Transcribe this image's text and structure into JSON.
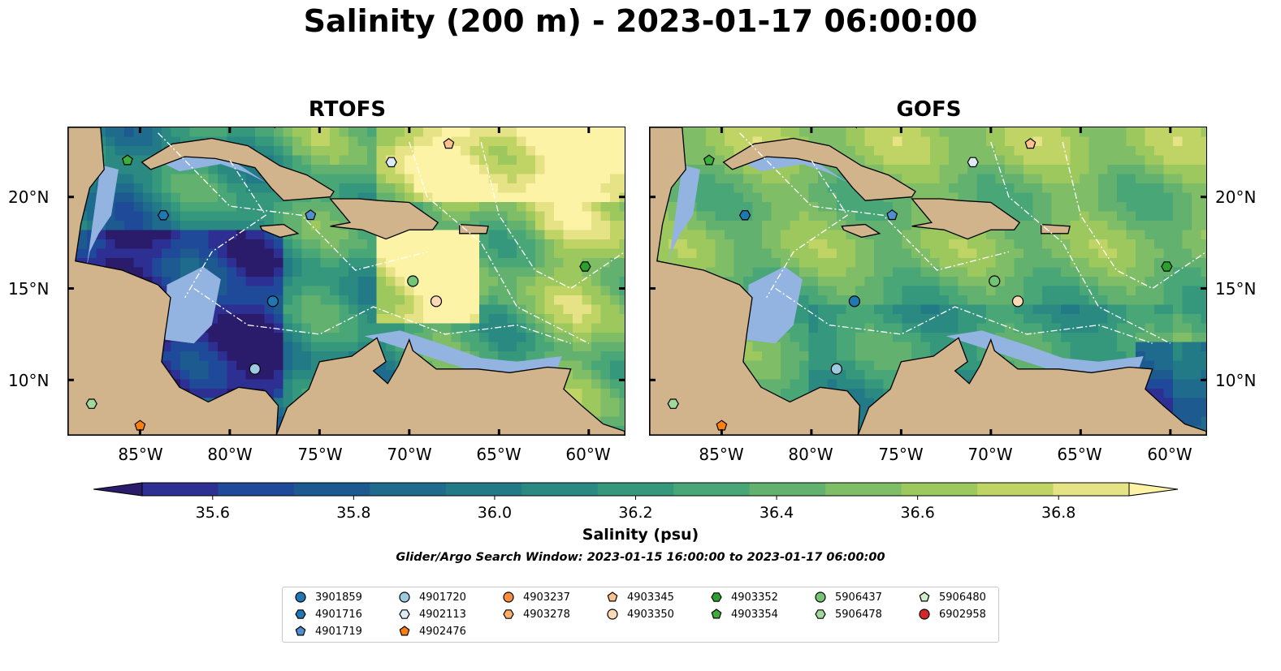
{
  "title": "Salinity (200 m) - 2023-01-17 06:00:00",
  "panels": [
    {
      "title": "RTOFS",
      "field": "rtofs"
    },
    {
      "title": "GOFS",
      "field": "gofs"
    }
  ],
  "lon_labels": [
    "85°W",
    "80°W",
    "75°W",
    "70°W",
    "65°W",
    "60°W"
  ],
  "lat_labels": [
    "20°N",
    "15°N",
    "10°N"
  ],
  "colorbar": {
    "label": "Salinity (psu)",
    "ticks": [
      "35.6",
      "35.8",
      "36.0",
      "36.2",
      "36.4",
      "36.6",
      "36.8"
    ],
    "min": 35.5,
    "max": 37.0,
    "step": 0.1,
    "colors": [
      "#2b1b6b",
      "#2e2f93",
      "#1f4a99",
      "#1c5a8f",
      "#1e6b8d",
      "#237a87",
      "#2a8a82",
      "#35987c",
      "#49a677",
      "#62b16f",
      "#7fbd66",
      "#9dc85e",
      "#c0d466",
      "#e6e386",
      "#fdf3a6"
    ]
  },
  "search_window": "Glider/Argo Search Window: 2023-01-15 16:00:00 to 2023-01-17 06:00:00",
  "legend": [
    {
      "id": "3901859",
      "marker": "circle",
      "color": "#1f77b4"
    },
    {
      "id": "4901716",
      "marker": "hexagon",
      "color": "#1f77b4"
    },
    {
      "id": "4901719",
      "marker": "pentagon",
      "color": "#4f8fd0"
    },
    {
      "id": "4901720",
      "marker": "circle",
      "color": "#9ecae1"
    },
    {
      "id": "4902113",
      "marker": "hexagon",
      "color": "#deebf7"
    },
    {
      "id": "4902476",
      "marker": "pentagon",
      "color": "#ff7f0e"
    },
    {
      "id": "4903237",
      "marker": "circle",
      "color": "#fd8d3c"
    },
    {
      "id": "4903278",
      "marker": "hexagon",
      "color": "#fdae6b"
    },
    {
      "id": "4903345",
      "marker": "pentagon",
      "color": "#fdc28b"
    },
    {
      "id": "4903350",
      "marker": "circle",
      "color": "#fdd9b5"
    },
    {
      "id": "4903352",
      "marker": "hexagon",
      "color": "#2ca02c"
    },
    {
      "id": "4903354",
      "marker": "pentagon",
      "color": "#3cae3c"
    },
    {
      "id": "5906437",
      "marker": "circle",
      "color": "#74c476"
    },
    {
      "id": "5906478",
      "marker": "hexagon",
      "color": "#a1d99b"
    },
    {
      "id": "5906480",
      "marker": "pentagon",
      "color": "#d0eec8"
    },
    {
      "id": "6902958",
      "marker": "circle",
      "color": "#d62728"
    }
  ],
  "floats_on_map": [
    {
      "id": "4903354",
      "lon": -85.7,
      "lat": 22.0
    },
    {
      "id": "4901716",
      "lon": -83.7,
      "lat": 19.0
    },
    {
      "id": "4901719",
      "lon": -75.5,
      "lat": 19.0
    },
    {
      "id": "4902113",
      "lon": -71.0,
      "lat": 21.9
    },
    {
      "id": "4903345",
      "lon": -67.8,
      "lat": 22.9
    },
    {
      "id": "5906437",
      "lon": -69.8,
      "lat": 15.4
    },
    {
      "id": "4903350",
      "lon": -68.5,
      "lat": 14.3
    },
    {
      "id": "3901859",
      "lon": -77.6,
      "lat": 14.3
    },
    {
      "id": "4901720",
      "lon": -78.6,
      "lat": 10.6
    },
    {
      "id": "4903352",
      "lon": -60.2,
      "lat": 16.2
    },
    {
      "id": "5906478",
      "lon": -87.7,
      "lat": 8.7
    },
    {
      "id": "4902476",
      "lon": -85.0,
      "lat": 7.5
    }
  ]
}
